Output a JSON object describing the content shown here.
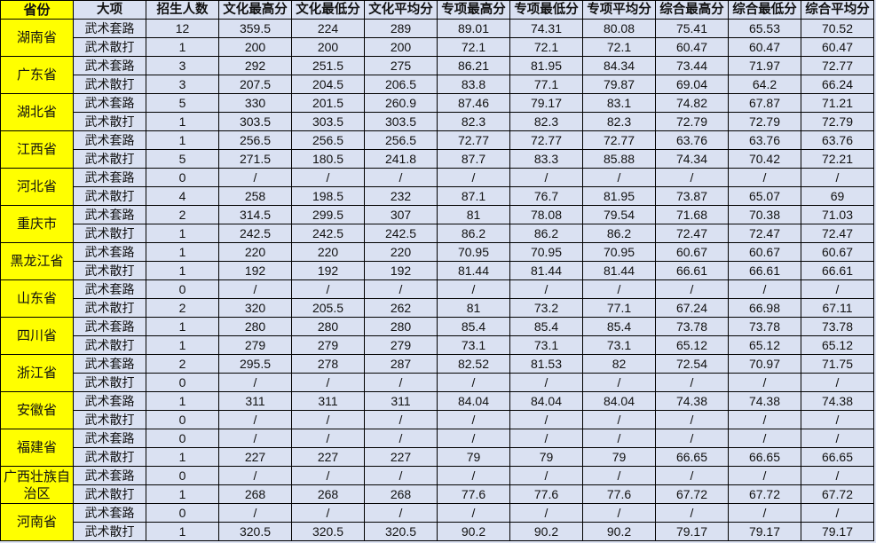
{
  "headers": [
    "省份",
    "大项",
    "招生人数",
    "文化最高分",
    "文化最低分",
    "文化平均分",
    "专项最高分",
    "专项最低分",
    "专项平均分",
    "综合最高分",
    "综合最低分",
    "综合平均分"
  ],
  "colors": {
    "province_bg": "#ffff00",
    "cell_bg": "#dae1f2",
    "border": "#000000"
  },
  "provinces": [
    {
      "name": "湖南省",
      "rows": [
        [
          "武术套路",
          "12",
          "359.5",
          "224",
          "289",
          "89.01",
          "74.31",
          "80.08",
          "75.41",
          "65.53",
          "70.52"
        ],
        [
          "武术散打",
          "1",
          "200",
          "200",
          "200",
          "72.1",
          "72.1",
          "72.1",
          "60.47",
          "60.47",
          "60.47"
        ]
      ]
    },
    {
      "name": "广东省",
      "rows": [
        [
          "武术套路",
          "3",
          "292",
          "251.5",
          "275",
          "86.21",
          "81.95",
          "84.34",
          "73.44",
          "71.97",
          "72.77"
        ],
        [
          "武术散打",
          "3",
          "207.5",
          "204.5",
          "206.5",
          "83.8",
          "77.1",
          "79.87",
          "69.04",
          "64.2",
          "66.24"
        ]
      ]
    },
    {
      "name": "湖北省",
      "rows": [
        [
          "武术套路",
          "5",
          "330",
          "201.5",
          "260.9",
          "87.46",
          "79.17",
          "83.1",
          "74.82",
          "67.87",
          "71.21"
        ],
        [
          "武术散打",
          "1",
          "303.5",
          "303.5",
          "303.5",
          "82.3",
          "82.3",
          "82.3",
          "72.79",
          "72.79",
          "72.79"
        ]
      ]
    },
    {
      "name": "江西省",
      "rows": [
        [
          "武术套路",
          "1",
          "256.5",
          "256.5",
          "256.5",
          "72.77",
          "72.77",
          "72.77",
          "63.76",
          "63.76",
          "63.76"
        ],
        [
          "武术散打",
          "5",
          "271.5",
          "180.5",
          "241.8",
          "87.7",
          "83.3",
          "85.88",
          "74.34",
          "70.42",
          "72.21"
        ]
      ]
    },
    {
      "name": "河北省",
      "rows": [
        [
          "武术套路",
          "0",
          "/",
          "/",
          "/",
          "/",
          "/",
          "/",
          "/",
          "/",
          "/"
        ],
        [
          "武术散打",
          "4",
          "258",
          "198.5",
          "232",
          "87.1",
          "76.7",
          "81.95",
          "73.87",
          "65.07",
          "69"
        ]
      ]
    },
    {
      "name": "重庆市",
      "rows": [
        [
          "武术套路",
          "2",
          "314.5",
          "299.5",
          "307",
          "81",
          "78.08",
          "79.54",
          "71.68",
          "70.38",
          "71.03"
        ],
        [
          "武术散打",
          "1",
          "242.5",
          "242.5",
          "242.5",
          "86.2",
          "86.2",
          "86.2",
          "72.47",
          "72.47",
          "72.47"
        ]
      ]
    },
    {
      "name": "黑龙江省",
      "rows": [
        [
          "武术套路",
          "1",
          "220",
          "220",
          "220",
          "70.95",
          "70.95",
          "70.95",
          "60.67",
          "60.67",
          "60.67"
        ],
        [
          "武术散打",
          "1",
          "192",
          "192",
          "192",
          "81.44",
          "81.44",
          "81.44",
          "66.61",
          "66.61",
          "66.61"
        ]
      ]
    },
    {
      "name": "山东省",
      "rows": [
        [
          "武术套路",
          "0",
          "/",
          "/",
          "/",
          "/",
          "/",
          "/",
          "/",
          "/",
          "/"
        ],
        [
          "武术散打",
          "2",
          "320",
          "205.5",
          "262",
          "81",
          "73.2",
          "77.1",
          "67.24",
          "66.98",
          "67.11"
        ]
      ]
    },
    {
      "name": "四川省",
      "rows": [
        [
          "武术套路",
          "1",
          "280",
          "280",
          "280",
          "85.4",
          "85.4",
          "85.4",
          "73.78",
          "73.78",
          "73.78"
        ],
        [
          "武术散打",
          "1",
          "279",
          "279",
          "279",
          "73.1",
          "73.1",
          "73.1",
          "65.12",
          "65.12",
          "65.12"
        ]
      ]
    },
    {
      "name": "浙江省",
      "rows": [
        [
          "武术套路",
          "2",
          "295.5",
          "278",
          "287",
          "82.52",
          "81.53",
          "82",
          "72.54",
          "70.97",
          "71.75"
        ],
        [
          "武术散打",
          "0",
          "/",
          "/",
          "/",
          "/",
          "/",
          "/",
          "/",
          "/",
          "/"
        ]
      ]
    },
    {
      "name": "安徽省",
      "rows": [
        [
          "武术套路",
          "1",
          "311",
          "311",
          "311",
          "84.04",
          "84.04",
          "84.04",
          "74.38",
          "74.38",
          "74.38"
        ],
        [
          "武术散打",
          "0",
          "/",
          "/",
          "/",
          "/",
          "/",
          "/",
          "/",
          "/",
          "/"
        ]
      ]
    },
    {
      "name": "福建省",
      "rows": [
        [
          "武术套路",
          "0",
          "/",
          "/",
          "/",
          "/",
          "/",
          "/",
          "/",
          "/",
          "/"
        ],
        [
          "武术散打",
          "1",
          "227",
          "227",
          "227",
          "79",
          "79",
          "79",
          "66.65",
          "66.65",
          "66.65"
        ]
      ]
    },
    {
      "name": "广西壮族自治区",
      "rows": [
        [
          "武术套路",
          "0",
          "/",
          "/",
          "/",
          "/",
          "/",
          "/",
          "/",
          "/",
          "/"
        ],
        [
          "武术散打",
          "1",
          "268",
          "268",
          "268",
          "77.6",
          "77.6",
          "77.6",
          "67.72",
          "67.72",
          "67.72"
        ]
      ]
    },
    {
      "name": "河南省",
      "rows": [
        [
          "武术套路",
          "0",
          "/",
          "/",
          "/",
          "/",
          "/",
          "/",
          "/",
          "/",
          "/"
        ],
        [
          "武术散打",
          "1",
          "320.5",
          "320.5",
          "320.5",
          "90.2",
          "90.2",
          "90.2",
          "79.17",
          "79.17",
          "79.17"
        ]
      ]
    }
  ]
}
